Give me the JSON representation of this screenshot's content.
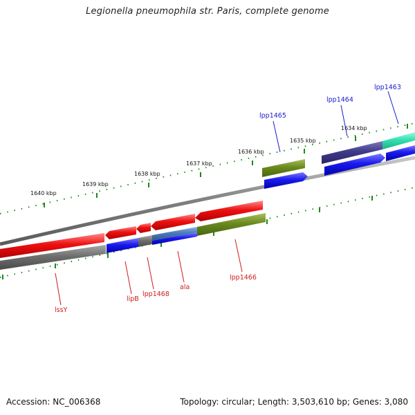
{
  "title": "Legionella pneumophila str. Paris, complete genome",
  "footer": {
    "accession": "Accession: NC_006368",
    "topology": "Topology: circular; Length: 3,503,610 bp; Genes: 3,080"
  },
  "scale": {
    "ticks": [
      "1640 kbp",
      "1639 kbp",
      "1638 kbp",
      "1637 kbp",
      "1636 kbp",
      "1635 kbp",
      "1634 kbp"
    ]
  },
  "genes": {
    "forward": [
      {
        "label": "lpp1465"
      },
      {
        "label": "lpp1464"
      },
      {
        "label": "lpp1463"
      }
    ],
    "reverse": [
      {
        "label": "lssY"
      },
      {
        "label": "lipB"
      },
      {
        "label": "lpp1468"
      },
      {
        "label": "ala"
      },
      {
        "label": "lpp1466"
      }
    ]
  },
  "colors": {
    "red": "#ee1111",
    "blue": "#1a1aee",
    "olive": "#6a8a1e",
    "gray": "#6f6f6f",
    "navy": "#3f3a8a",
    "teal": "#33e0b0",
    "steel": "#4a7ab8",
    "tick": "#1a8a1a"
  }
}
